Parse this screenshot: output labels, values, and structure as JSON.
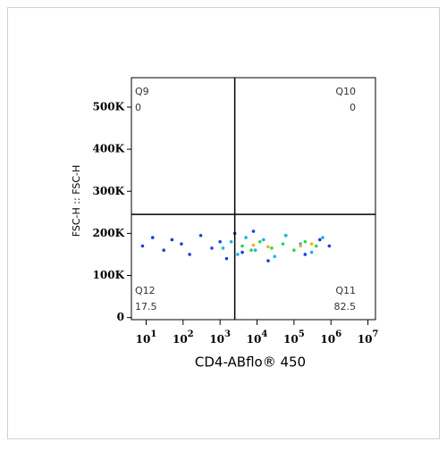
{
  "chart_data": {
    "type": "scatter",
    "xlabel": "CD4-ABflo® 450",
    "ylabel": "FSC-H :: FSC-H",
    "xscale": "log",
    "xlim": [
      4,
      16000000
    ],
    "xticks": [
      {
        "value": 10,
        "base": "10",
        "exponent": "1"
      },
      {
        "value": 100,
        "base": "10",
        "exponent": "2"
      },
      {
        "value": 1000,
        "base": "10",
        "exponent": "3"
      },
      {
        "value": 10000,
        "base": "10",
        "exponent": "4"
      },
      {
        "value": 100000,
        "base": "10",
        "exponent": "5"
      },
      {
        "value": 1000000,
        "base": "10",
        "exponent": "6"
      },
      {
        "value": 10000000,
        "base": "10",
        "exponent": "7"
      }
    ],
    "ylim": [
      -5000,
      570000
    ],
    "yticks": [
      0,
      {
        "value": 100000,
        "label": "100K"
      },
      {
        "value": 200000,
        "label": "200K"
      },
      {
        "value": 300000,
        "label": "300K"
      },
      {
        "value": 400000,
        "label": "400K"
      },
      {
        "value": 500000,
        "label": "500K"
      }
    ],
    "gate_x": 2500,
    "gate_y": 245000,
    "gate_color": "#000000",
    "quadrants": [
      {
        "name": "Q9",
        "value": 0,
        "corner": "top-left"
      },
      {
        "name": "Q10",
        "value": 0,
        "corner": "top-right"
      },
      {
        "name": "Q12",
        "value": 17.5,
        "corner": "bottom-left"
      },
      {
        "name": "Q11",
        "value": 82.5,
        "corner": "bottom-right"
      }
    ],
    "series": [
      {
        "color": "#1f3fd8",
        "x": [
          8,
          15,
          30,
          50,
          90,
          150,
          300,
          600,
          1000,
          1500,
          2500,
          4000,
          8000,
          20000,
          60000,
          200000,
          500000,
          900000
        ],
        "y": [
          170000,
          190000,
          160000,
          185000,
          175000,
          150000,
          195000,
          165000,
          180000,
          140000,
          200000,
          155000,
          205000,
          135000,
          195000,
          150000,
          185000,
          170000
        ]
      },
      {
        "color": "#18b6e0",
        "x": [
          1200,
          2000,
          3000,
          5000,
          9000,
          15000,
          30000,
          60000,
          150000,
          300000,
          600000
        ],
        "y": [
          165000,
          180000,
          150000,
          190000,
          160000,
          185000,
          145000,
          195000,
          175000,
          155000,
          190000
        ]
      },
      {
        "color": "#2fd34a",
        "x": [
          4000,
          7000,
          12000,
          25000,
          50000,
          100000,
          200000,
          400000
        ],
        "y": [
          170000,
          160000,
          180000,
          165000,
          175000,
          160000,
          180000,
          170000
        ]
      },
      {
        "color": "#f0b020",
        "x": [
          8000,
          20000,
          150000,
          300000
        ],
        "y": [
          172000,
          168000,
          170000,
          175000
        ]
      }
    ]
  }
}
